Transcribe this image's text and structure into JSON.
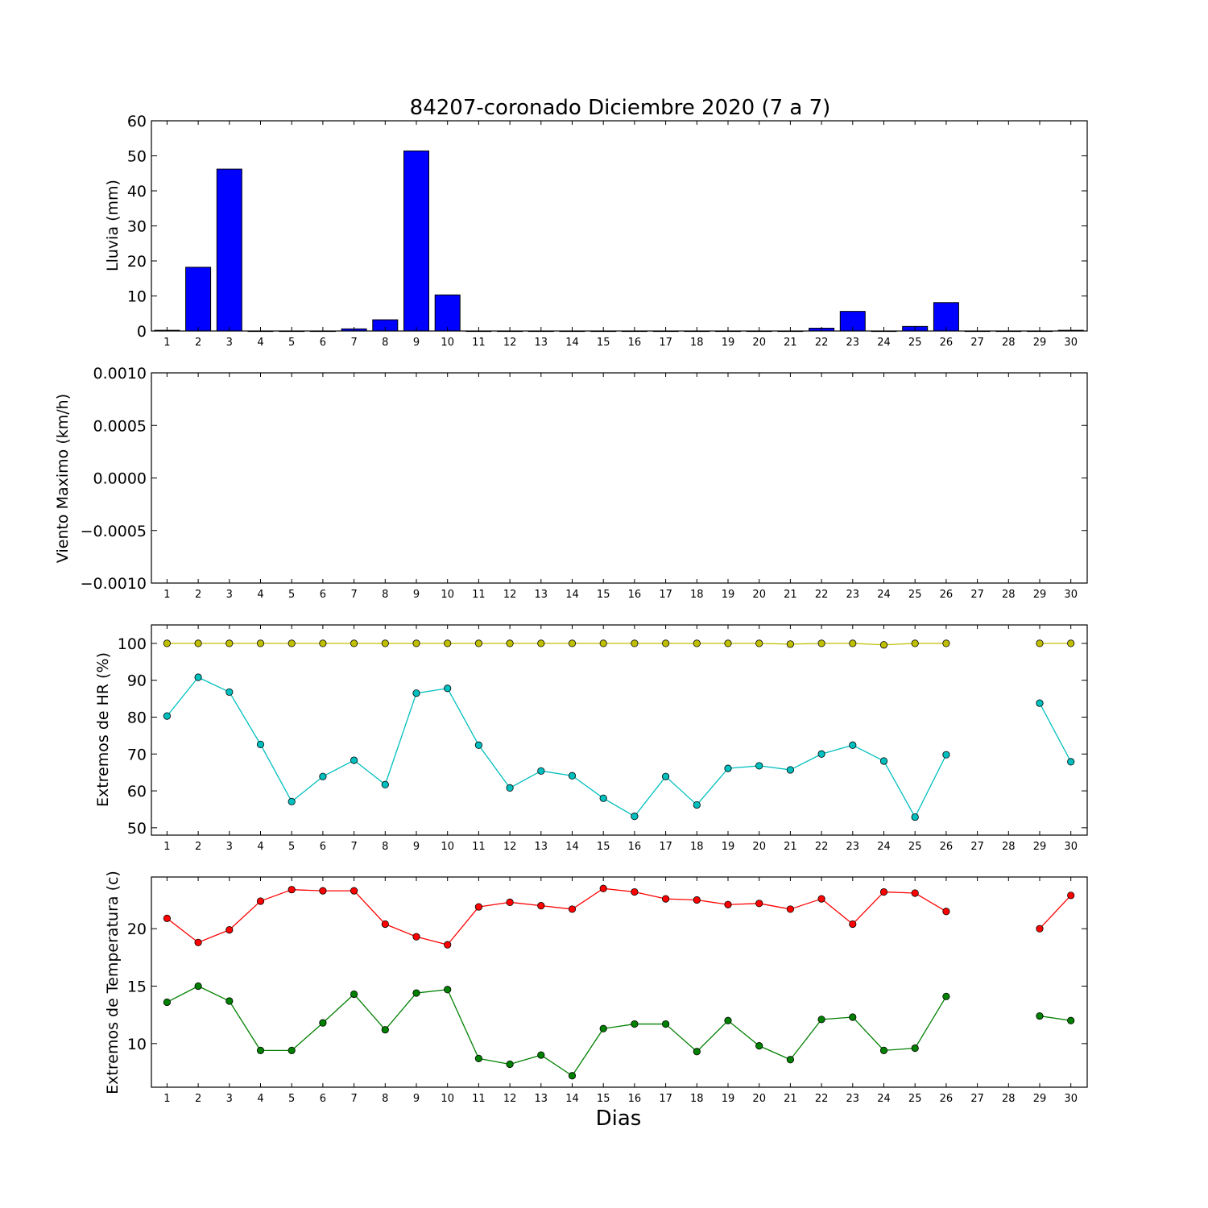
{
  "figure": {
    "title": "84207-coronado Diciembre 2020  (7 a 7)",
    "xlabel": "Dias"
  },
  "chart_data": [
    {
      "type": "bar",
      "ylabel": "Lluvia (mm)",
      "ylim": [
        0,
        60
      ],
      "yticks": [
        "0",
        "10",
        "20",
        "30",
        "40",
        "50",
        "60"
      ],
      "categories": [
        1,
        2,
        3,
        4,
        5,
        6,
        7,
        8,
        9,
        10,
        11,
        12,
        13,
        14,
        15,
        16,
        17,
        18,
        19,
        20,
        21,
        22,
        23,
        24,
        25,
        26,
        27,
        28,
        29,
        30
      ],
      "values": [
        0.2,
        18.2,
        46.2,
        0,
        0,
        0,
        0.6,
        3.2,
        51.4,
        10.3,
        0,
        0,
        0,
        0,
        0,
        0,
        0,
        0,
        0,
        0,
        0,
        0.8,
        5.6,
        0,
        1.3,
        8.1,
        0,
        0,
        0,
        0.2
      ],
      "color": "#0000ff"
    },
    {
      "type": "line",
      "ylabel": "Viento Maximo (km/h)",
      "ylim": [
        -0.001,
        0.001
      ],
      "yticks": [
        "0.0010",
        "0.0005",
        "0.0000",
        "−0.0005",
        "−0.0010"
      ],
      "categories": [
        1,
        2,
        3,
        4,
        5,
        6,
        7,
        8,
        9,
        10,
        11,
        12,
        13,
        14,
        15,
        16,
        17,
        18,
        19,
        20,
        21,
        22,
        23,
        24,
        25,
        26,
        27,
        28,
        29,
        30
      ],
      "series": []
    },
    {
      "type": "line",
      "ylabel": "Extremos de HR (%)",
      "ylim": [
        48,
        105
      ],
      "yticks": [
        "50",
        "60",
        "70",
        "80",
        "90",
        "100"
      ],
      "categories": [
        1,
        2,
        3,
        4,
        5,
        6,
        7,
        8,
        9,
        10,
        11,
        12,
        13,
        14,
        15,
        16,
        17,
        18,
        19,
        20,
        21,
        22,
        23,
        24,
        25,
        26,
        27,
        28,
        29,
        30
      ],
      "series": [
        {
          "color": "#bfbf00",
          "values": [
            100,
            100,
            100,
            100,
            100,
            100,
            100,
            100,
            100,
            100,
            100,
            100,
            100,
            100,
            100,
            100,
            100,
            100,
            100,
            100,
            99.8,
            100,
            100,
            99.6,
            100,
            100,
            null,
            null,
            100,
            100
          ]
        },
        {
          "color": "#00bfbf",
          "values": [
            80.3,
            90.8,
            86.8,
            72.6,
            57.1,
            63.9,
            68.3,
            61.7,
            86.5,
            87.8,
            72.4,
            60.8,
            65.4,
            64.1,
            58.0,
            53.1,
            63.9,
            56.2,
            66.1,
            66.8,
            65.7,
            70.0,
            72.4,
            68.1,
            52.9,
            69.8,
            null,
            null,
            83.8,
            67.9
          ]
        }
      ]
    },
    {
      "type": "line",
      "ylabel": "Extremos de Temperatura (c)",
      "ylim": [
        6.2,
        24.5
      ],
      "yticks": [
        "10",
        "15",
        "20"
      ],
      "categories": [
        1,
        2,
        3,
        4,
        5,
        6,
        7,
        8,
        9,
        10,
        11,
        12,
        13,
        14,
        15,
        16,
        17,
        18,
        19,
        20,
        21,
        22,
        23,
        24,
        25,
        26,
        27,
        28,
        29,
        30
      ],
      "series": [
        {
          "color": "#ff0000",
          "values": [
            20.9,
            18.8,
            19.9,
            22.4,
            23.4,
            23.3,
            23.3,
            20.4,
            19.3,
            18.6,
            21.9,
            22.3,
            22.0,
            21.7,
            23.5,
            23.2,
            22.6,
            22.5,
            22.1,
            22.2,
            21.7,
            22.6,
            20.4,
            23.2,
            23.1,
            21.5,
            null,
            null,
            20.0,
            22.9
          ]
        },
        {
          "color": "#008000",
          "values": [
            13.6,
            15.0,
            13.7,
            9.4,
            9.4,
            11.8,
            14.3,
            11.2,
            14.4,
            14.7,
            8.7,
            8.2,
            9.0,
            7.2,
            11.3,
            11.7,
            11.7,
            9.3,
            12.0,
            9.8,
            8.6,
            12.1,
            12.3,
            9.4,
            9.6,
            14.1,
            null,
            null,
            12.4,
            12.0
          ]
        }
      ]
    }
  ]
}
